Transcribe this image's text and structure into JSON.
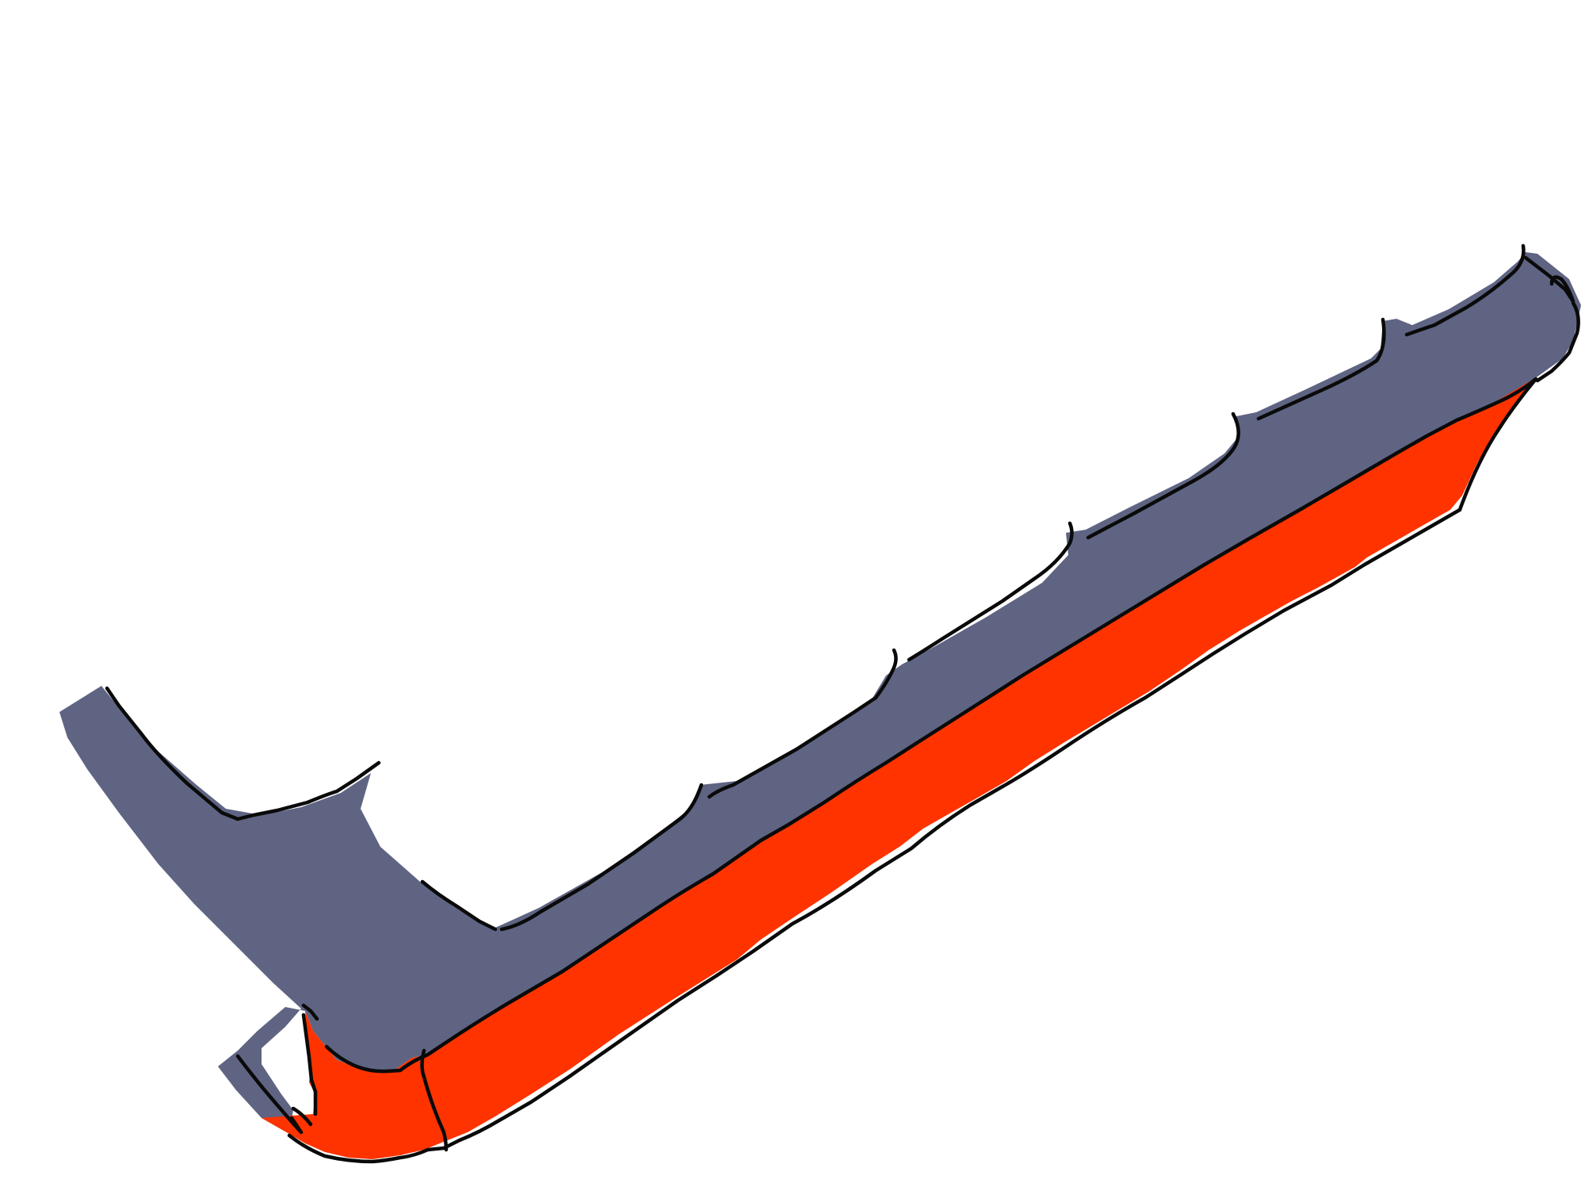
{
  "drawing": {
    "subject": "sketch-of-bracket-part",
    "colors": {
      "background": "#ffffff",
      "top_surface": "#5f6483",
      "side_surface": "#ff3300",
      "outline": "#0a0a0a"
    }
  }
}
